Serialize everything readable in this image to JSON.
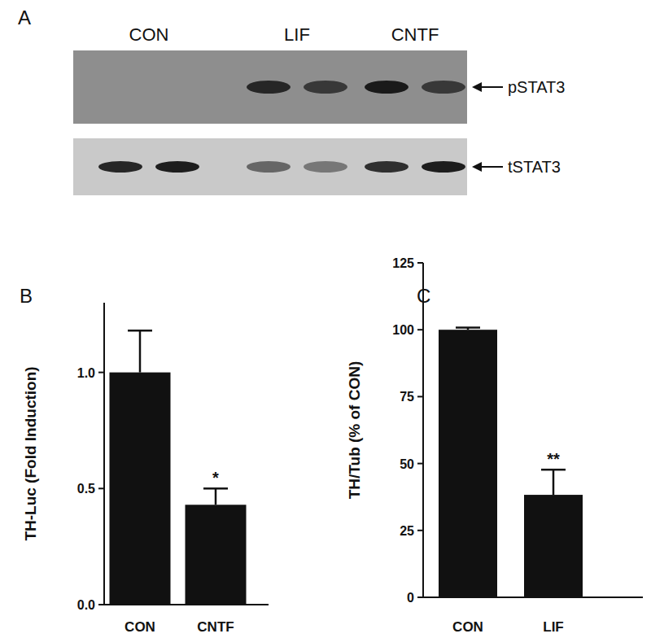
{
  "blot": {
    "panel": "A",
    "lanes": [
      "CON",
      "LIF",
      "CNTF"
    ],
    "rows": [
      {
        "label": "pSTAT3",
        "intensity": [
          0,
          0,
          0.85,
          0.7,
          0.95,
          0.7
        ]
      },
      {
        "label": "tSTAT3",
        "intensity": [
          0.9,
          0.95,
          0.55,
          0.45,
          0.85,
          0.95
        ]
      }
    ]
  },
  "chart_data": [
    {
      "type": "bar",
      "panel": "B",
      "y_label": "TH-Luc (Fold Induction)",
      "categories": [
        "CON",
        "CNTF"
      ],
      "values": [
        1.0,
        0.43
      ],
      "errors": [
        0.18,
        0.07
      ],
      "color": "#111111",
      "ylim": [
        0,
        1.3
      ],
      "yticks": [
        {
          "value": 0,
          "label": "0.0"
        },
        {
          "value": 0.5,
          "label": "0.5"
        },
        {
          "value": 1,
          "label": "1.0"
        }
      ],
      "annotations": [
        {
          "category": "CNTF",
          "text": "*"
        }
      ]
    },
    {
      "type": "bar",
      "panel": "C",
      "y_label": "TH/Tub (% of CON)",
      "categories": [
        "CON",
        "LIF"
      ],
      "values": [
        100,
        38.3
      ],
      "errors": [
        0.8,
        9.4
      ],
      "color": "#111111",
      "ylim": [
        0,
        125
      ],
      "yticks": [
        0,
        25,
        50,
        75,
        100,
        125
      ],
      "annotations": [
        {
          "category": "LIF",
          "text": "**"
        }
      ]
    }
  ]
}
